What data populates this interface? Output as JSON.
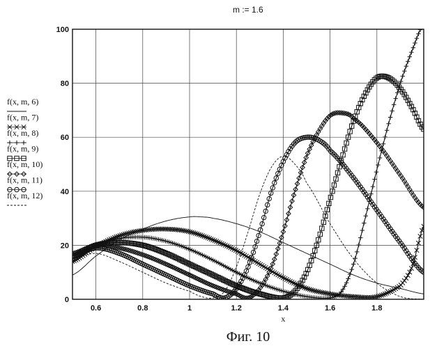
{
  "definition": "m := 1.6",
  "caption": "Фиг. 10",
  "chart_data": {
    "type": "line",
    "xlabel": "x",
    "ylabel": "",
    "xlim": [
      0.5,
      2.0
    ],
    "ylim": [
      0,
      100
    ],
    "grid": true,
    "legend_position": "left",
    "x_ticks": [
      "0.6",
      "0.8",
      "1",
      "1.2",
      "1.4",
      "1.6",
      "1.8"
    ],
    "y_ticks": [
      "0",
      "20",
      "40",
      "60",
      "80",
      "100"
    ],
    "series": [
      {
        "name": "f(x, m, 6)",
        "marker": "solid",
        "points": [
          [
            0.5,
            9
          ],
          [
            0.6,
            16
          ],
          [
            0.7,
            22
          ],
          [
            0.8,
            26
          ],
          [
            0.9,
            29
          ],
          [
            1.0,
            30.5
          ],
          [
            1.05,
            30.5
          ],
          [
            1.1,
            30
          ],
          [
            1.2,
            28
          ],
          [
            1.3,
            25
          ],
          [
            1.4,
            21
          ],
          [
            1.5,
            17
          ],
          [
            1.6,
            13
          ],
          [
            1.7,
            9
          ],
          [
            1.8,
            6
          ],
          [
            1.9,
            4
          ],
          [
            2.0,
            2
          ]
        ]
      },
      {
        "name": "f(x, m, 7)",
        "marker": "x",
        "points": [
          [
            0.5,
            14
          ],
          [
            0.6,
            19.5
          ],
          [
            0.7,
            23.5
          ],
          [
            0.8,
            25.5
          ],
          [
            0.9,
            26
          ],
          [
            1.0,
            25
          ],
          [
            1.1,
            22
          ],
          [
            1.2,
            18
          ],
          [
            1.3,
            13
          ],
          [
            1.4,
            8
          ],
          [
            1.5,
            4
          ],
          [
            1.6,
            2
          ],
          [
            1.7,
            1
          ],
          [
            1.8,
            1
          ],
          [
            1.9,
            5
          ],
          [
            1.95,
            12
          ],
          [
            2.0,
            27
          ]
        ]
      },
      {
        "name": "f(x, m, 8)",
        "marker": "plus",
        "points": [
          [
            0.5,
            15
          ],
          [
            0.6,
            20
          ],
          [
            0.7,
            22.5
          ],
          [
            0.8,
            23
          ],
          [
            0.9,
            21.5
          ],
          [
            1.0,
            18.5
          ],
          [
            1.1,
            14.5
          ],
          [
            1.2,
            10
          ],
          [
            1.3,
            6
          ],
          [
            1.4,
            3
          ],
          [
            1.5,
            1
          ],
          [
            1.6,
            0.5
          ],
          [
            1.65,
            3
          ],
          [
            1.7,
            13
          ],
          [
            1.75,
            30
          ],
          [
            1.8,
            48
          ],
          [
            1.85,
            65
          ],
          [
            1.9,
            80
          ],
          [
            1.95,
            92
          ],
          [
            2.0,
            102
          ]
        ]
      },
      {
        "name": "f(x, m, 9)",
        "marker": "square",
        "points": [
          [
            0.5,
            16
          ],
          [
            0.6,
            20
          ],
          [
            0.7,
            21
          ],
          [
            0.8,
            20
          ],
          [
            0.9,
            17
          ],
          [
            1.0,
            13
          ],
          [
            1.1,
            9
          ],
          [
            1.2,
            5
          ],
          [
            1.3,
            2
          ],
          [
            1.4,
            0.5
          ],
          [
            1.45,
            3
          ],
          [
            1.5,
            10
          ],
          [
            1.55,
            22
          ],
          [
            1.6,
            37
          ],
          [
            1.65,
            52
          ],
          [
            1.7,
            66
          ],
          [
            1.75,
            76
          ],
          [
            1.8,
            82
          ],
          [
            1.85,
            82
          ],
          [
            1.9,
            78
          ],
          [
            1.95,
            71
          ],
          [
            2.0,
            63
          ]
        ]
      },
      {
        "name": "f(x, m, 10)",
        "marker": "diamond",
        "points": [
          [
            0.5,
            17
          ],
          [
            0.6,
            20
          ],
          [
            0.7,
            19
          ],
          [
            0.8,
            16.5
          ],
          [
            0.9,
            13
          ],
          [
            1.0,
            9
          ],
          [
            1.1,
            5
          ],
          [
            1.2,
            2
          ],
          [
            1.25,
            0.5
          ],
          [
            1.3,
            4
          ],
          [
            1.35,
            12
          ],
          [
            1.4,
            25
          ],
          [
            1.45,
            40
          ],
          [
            1.5,
            53
          ],
          [
            1.55,
            62
          ],
          [
            1.6,
            68
          ],
          [
            1.65,
            69
          ],
          [
            1.7,
            67
          ],
          [
            1.8,
            58
          ],
          [
            1.9,
            46
          ],
          [
            2.0,
            34
          ]
        ]
      },
      {
        "name": "f(x, m, 11)",
        "marker": "circle",
        "points": [
          [
            0.5,
            16
          ],
          [
            0.6,
            19
          ],
          [
            0.7,
            17
          ],
          [
            0.8,
            13
          ],
          [
            0.9,
            9
          ],
          [
            1.0,
            5
          ],
          [
            1.1,
            2
          ],
          [
            1.15,
            0.5
          ],
          [
            1.2,
            4
          ],
          [
            1.25,
            12
          ],
          [
            1.3,
            25
          ],
          [
            1.35,
            40
          ],
          [
            1.4,
            51
          ],
          [
            1.45,
            58
          ],
          [
            1.5,
            60
          ],
          [
            1.55,
            59
          ],
          [
            1.6,
            55
          ],
          [
            1.7,
            45
          ],
          [
            1.8,
            33
          ],
          [
            1.9,
            21
          ],
          [
            2.0,
            10
          ]
        ]
      },
      {
        "name": "f(x, m, 12)",
        "marker": "dashed",
        "points": [
          [
            0.5,
            15
          ],
          [
            0.6,
            17
          ],
          [
            0.7,
            14
          ],
          [
            0.8,
            10
          ],
          [
            0.9,
            6
          ],
          [
            1.0,
            3
          ],
          [
            1.05,
            1
          ],
          [
            1.1,
            0.5
          ],
          [
            1.15,
            3
          ],
          [
            1.2,
            12
          ],
          [
            1.25,
            25
          ],
          [
            1.3,
            39
          ],
          [
            1.35,
            49
          ],
          [
            1.4,
            53
          ],
          [
            1.45,
            50
          ],
          [
            1.5,
            43
          ],
          [
            1.6,
            28
          ],
          [
            1.7,
            15
          ],
          [
            1.8,
            6
          ],
          [
            1.9,
            1
          ],
          [
            2.0,
            0
          ]
        ]
      }
    ]
  }
}
